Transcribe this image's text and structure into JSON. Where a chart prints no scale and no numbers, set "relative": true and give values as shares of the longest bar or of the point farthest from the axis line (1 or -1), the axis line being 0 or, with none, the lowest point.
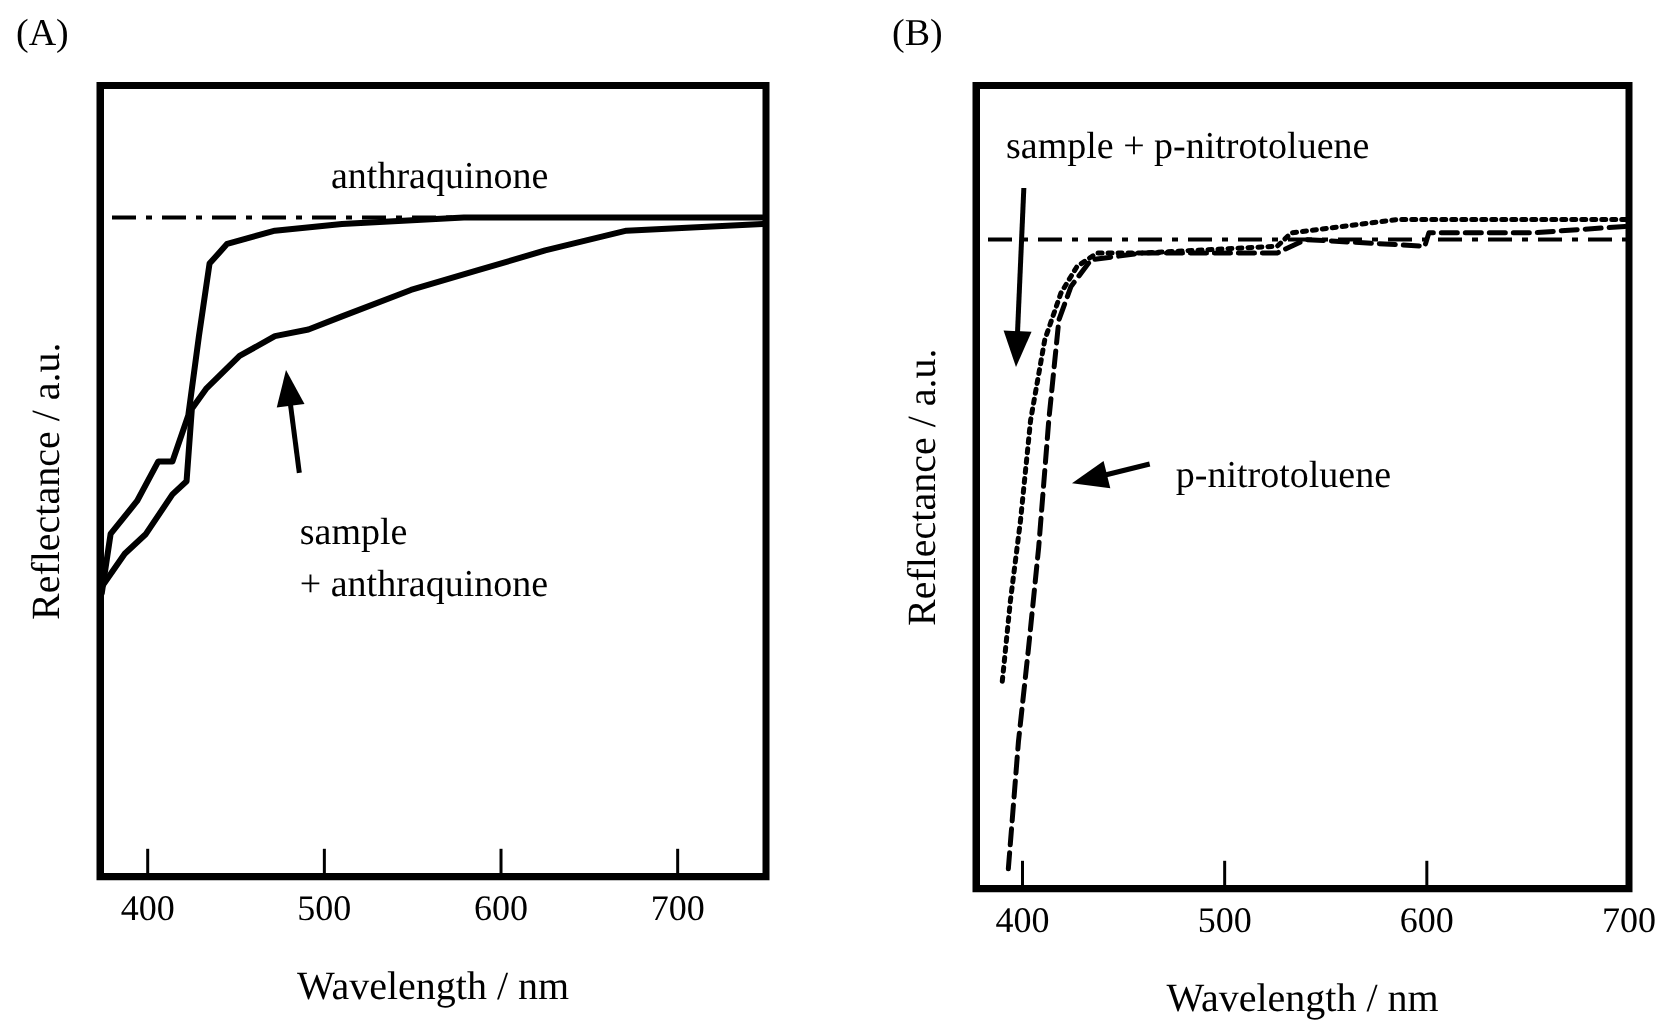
{
  "chart_data": [
    {
      "type": "line",
      "title": "(A)",
      "xlabel": "Wavelength / nm",
      "ylabel": "Reflectance / a.u.",
      "relative": true,
      "xlim": [
        373,
        750
      ],
      "xticks": [
        400,
        500,
        600,
        700
      ],
      "grid": false,
      "legend": false,
      "marker": "none",
      "line_style": "solid",
      "series": [
        {
          "color": "#000000",
          "x": [
            374,
            379,
            394,
            406,
            414,
            423,
            429,
            435,
            445,
            472,
            510,
            579,
            748
          ],
          "values": [
            0.43,
            0.52,
            0.57,
            0.63,
            0.63,
            0.7,
            0.82,
            0.93,
            0.96,
            0.98,
            0.99,
            1.0,
            1.0
          ]
        },
        {
          "color": "#000000",
          "x": [
            374,
            387,
            399,
            414,
            422,
            425,
            433,
            452,
            472,
            491,
            510,
            549,
            587,
            625,
            671,
            748
          ],
          "values": [
            0.44,
            0.49,
            0.52,
            0.58,
            0.6,
            0.71,
            0.74,
            0.79,
            0.82,
            0.83,
            0.85,
            0.89,
            0.92,
            0.95,
            0.98,
            0.99
          ]
        }
      ],
      "ref_lines": [
        {
          "axis": "y",
          "value": 1.0,
          "line_style": "dashed",
          "color": "#000000"
        }
      ],
      "annotations": [
        "anthraquinone",
        "sample\n+ anthraquinone"
      ]
    },
    {
      "type": "line",
      "title": "(B)",
      "xlabel": "Wavelength / nm",
      "ylabel": "Reflectance / a.u.",
      "relative": true,
      "xlim": [
        377,
        700
      ],
      "xticks": [
        400,
        500,
        600,
        700
      ],
      "grid": false,
      "legend": false,
      "marker": "none",
      "series": [
        {
          "color": "#000000",
          "line_style": "dotted",
          "x": [
            390,
            394,
            399,
            404,
            411,
            419,
            427,
            437,
            460,
            526,
            533,
            586,
            700
          ],
          "values": [
            0.31,
            0.43,
            0.55,
            0.7,
            0.82,
            0.89,
            0.93,
            0.95,
            0.95,
            0.96,
            0.98,
            1.0,
            1.0
          ]
        },
        {
          "color": "#000000",
          "line_style": "dashed",
          "x": [
            393,
            398,
            403,
            408,
            413,
            418,
            424,
            434,
            460,
            526,
            540,
            599,
            601,
            652,
            700
          ],
          "values": [
            0.03,
            0.22,
            0.36,
            0.51,
            0.7,
            0.85,
            0.9,
            0.94,
            0.95,
            0.95,
            0.97,
            0.96,
            0.98,
            0.98,
            0.99
          ]
        }
      ],
      "ref_lines": [
        {
          "axis": "y",
          "value": 0.97,
          "line_style": "dashed",
          "color": "#000000"
        }
      ],
      "annotations": [
        "sample + p-nitrotoluene",
        "p-nitrotoluene"
      ]
    }
  ]
}
